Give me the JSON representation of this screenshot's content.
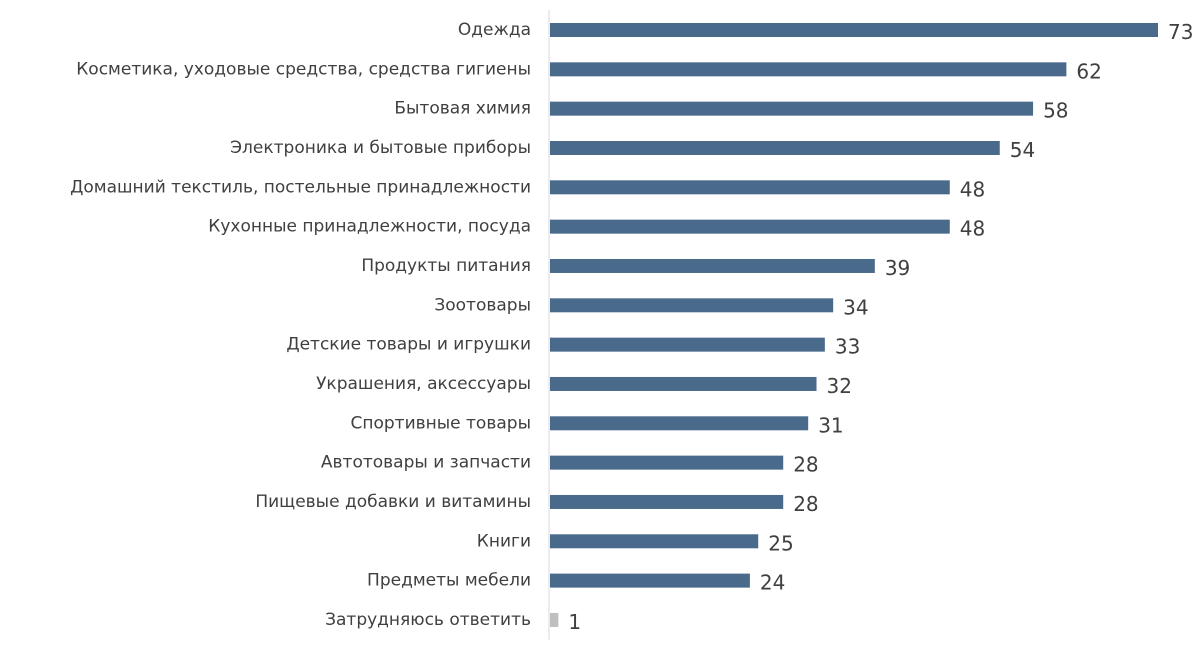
{
  "chart_data": {
    "type": "bar",
    "orientation": "horizontal",
    "title": "",
    "xlabel": "",
    "ylabel": "",
    "grid": false,
    "legend": "none",
    "xlim": [
      0,
      73
    ],
    "categories": [
      "Одежда",
      "Косметика, уходовые средства, средства гигиены",
      "Бытовая химия",
      "Электроника и бытовые приборы",
      "Домашний текстиль, постельные принадлежности",
      "Кухонные принадлежности, посуда",
      "Продукты питания",
      "Зоотовары",
      "Детские товары и игрушки",
      "Украшения, аксессуары",
      "Спортивные товары",
      "Автотовары и запчасти",
      "Пищевые добавки и витамины",
      "Книги",
      "Предметы мебели",
      "Затрудняюсь ответить"
    ],
    "values": [
      73,
      62,
      58,
      54,
      48,
      48,
      39,
      34,
      33,
      32,
      31,
      28,
      28,
      25,
      24,
      1
    ],
    "bar_colors": [
      "#4a6a8c",
      "#4a6a8c",
      "#4a6a8c",
      "#4a6a8c",
      "#4a6a8c",
      "#4a6a8c",
      "#4a6a8c",
      "#4a6a8c",
      "#4a6a8c",
      "#4a6a8c",
      "#4a6a8c",
      "#4a6a8c",
      "#4a6a8c",
      "#4a6a8c",
      "#4a6a8c",
      "#bfbfbf"
    ],
    "axis_color": "#d9d9d9"
  }
}
